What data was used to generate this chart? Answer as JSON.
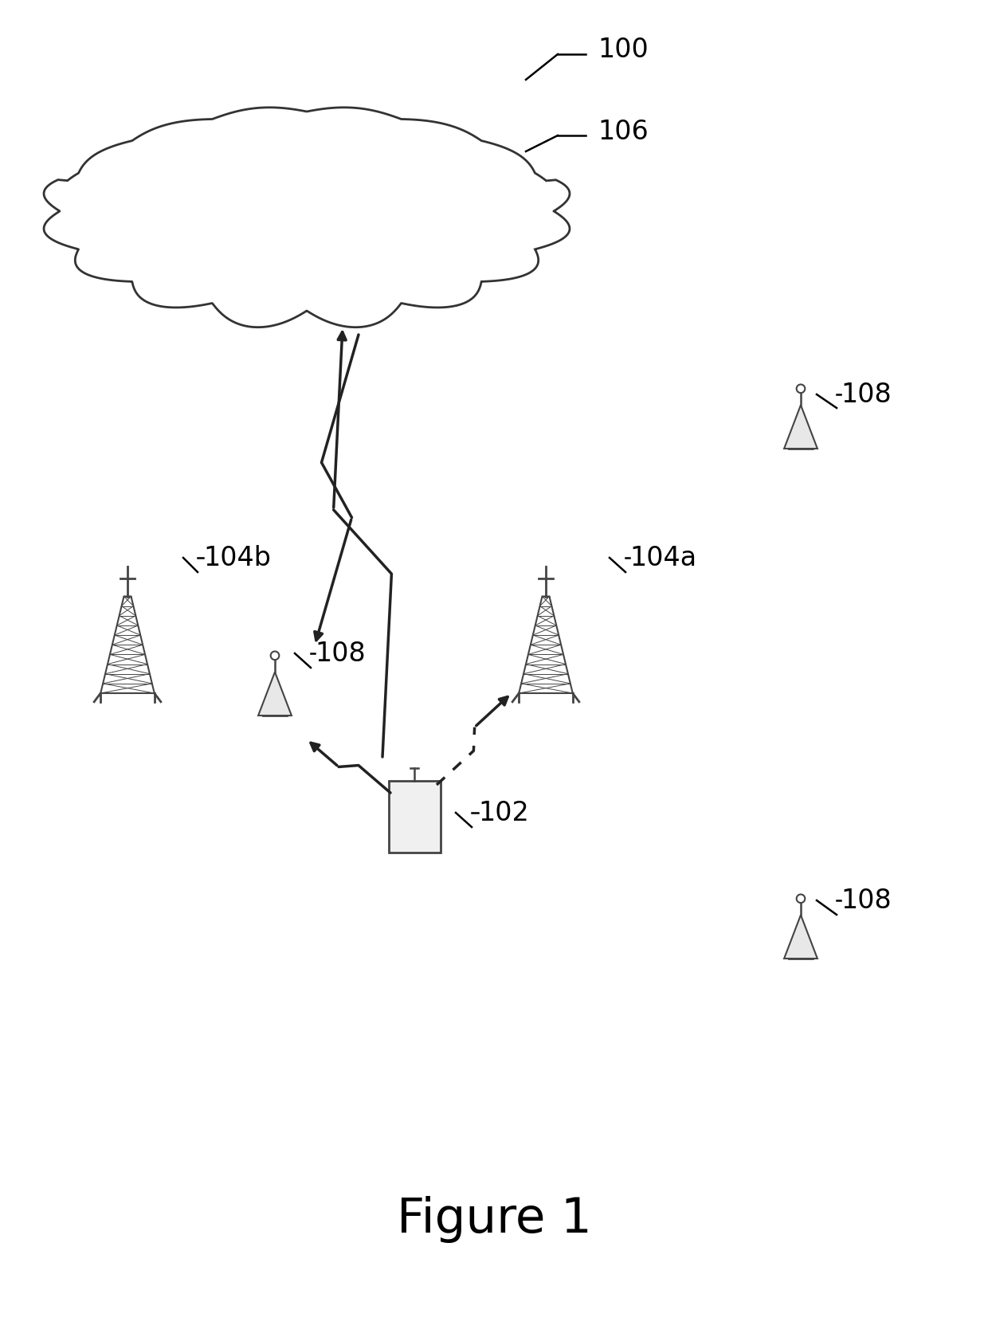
{
  "figure_label": "Figure 1",
  "background_color": "#ffffff",
  "figure_size": [
    12.4,
    16.73
  ],
  "dpi": 100,
  "line_color": "#111111",
  "hatch_color": "#444444"
}
